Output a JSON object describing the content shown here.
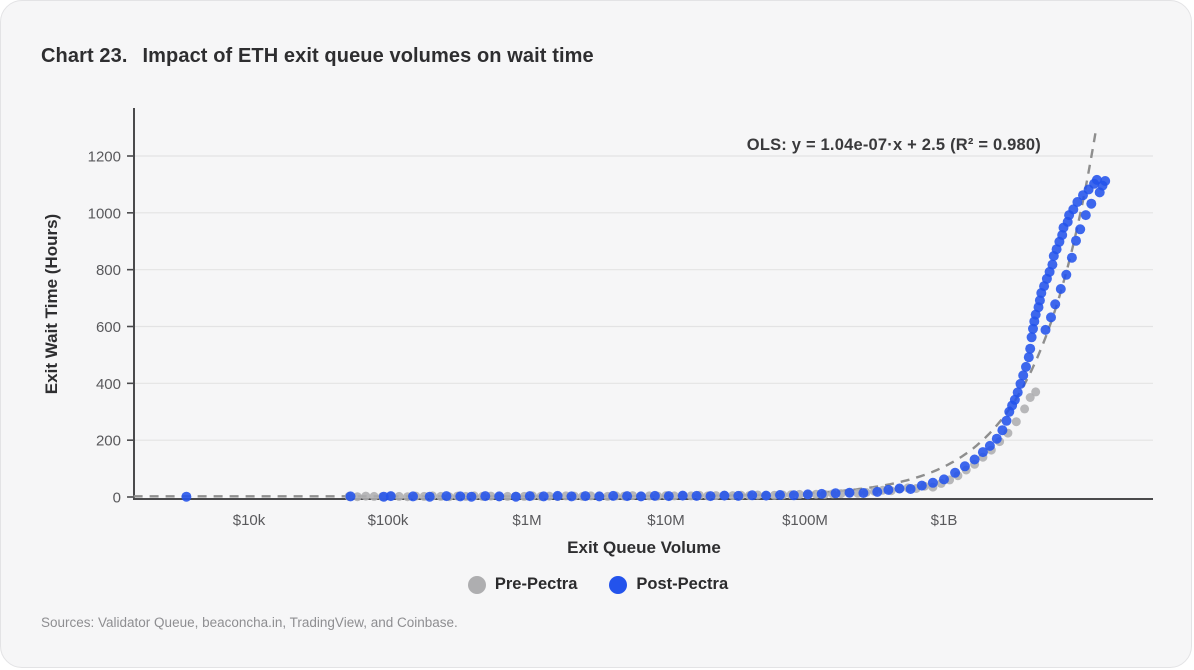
{
  "card": {
    "title_prefix": "Chart 23.",
    "title_text": "Impact of ETH exit queue volumes on wait time",
    "sources": "Sources: Validator Queue, beaconcha.in, TradingView, and Coinbase."
  },
  "colors": {
    "card_bg": "#f6f6f7",
    "pre_pectra": "#aeaeb0",
    "post_pectra": "#2353ec",
    "ols_line": "#8e8e8e",
    "gridline": "#e3e3e4",
    "axis": "#4a4a4c",
    "tick_text": "#59595c"
  },
  "chart_data": {
    "type": "scatter",
    "title": "Impact of ETH exit queue volumes on wait time",
    "xlabel": "Exit Queue Volume",
    "ylabel": "Exit Wait Time (Hours)",
    "annotation": "OLS: y = 1.04e-07·x + 2.5  (R² = 0.980)",
    "x_scale": "log10_dollars",
    "xlim_log10": [
      3.17,
      10.5
    ],
    "ylim": [
      0,
      1300
    ],
    "grid": "horizontal",
    "legend_position": "bottom-center",
    "x_ticks": [
      {
        "log10": 4,
        "label": "$10k"
      },
      {
        "log10": 5,
        "label": "$100k"
      },
      {
        "log10": 6,
        "label": "$1M"
      },
      {
        "log10": 7,
        "label": "$10M"
      },
      {
        "log10": 8,
        "label": "$100M"
      },
      {
        "log10": 9,
        "label": "$1B"
      }
    ],
    "y_ticks": [
      0,
      200,
      400,
      600,
      800,
      1000,
      1200
    ],
    "ols_fit": {
      "slope": 1.04e-07,
      "intercept": 2.5,
      "r_squared": 0.98,
      "x_units": "dollars",
      "y_units": "hours"
    },
    "series": [
      {
        "name": "Pre-Pectra",
        "color": "#aeaeb0",
        "points_log10x_hours": [
          [
            4.72,
            2
          ],
          [
            4.78,
            1
          ],
          [
            4.84,
            3
          ],
          [
            4.9,
            2
          ],
          [
            4.96,
            1
          ],
          [
            5.02,
            3
          ],
          [
            5.08,
            2
          ],
          [
            5.14,
            1
          ],
          [
            5.2,
            3
          ],
          [
            5.26,
            2
          ],
          [
            5.32,
            4
          ],
          [
            5.38,
            2
          ],
          [
            5.44,
            1
          ],
          [
            5.5,
            3
          ],
          [
            5.56,
            2
          ],
          [
            5.62,
            4
          ],
          [
            5.68,
            2
          ],
          [
            5.74,
            3
          ],
          [
            5.8,
            1
          ],
          [
            5.86,
            2
          ],
          [
            5.92,
            3
          ],
          [
            5.98,
            2
          ],
          [
            6.04,
            4
          ],
          [
            6.1,
            2
          ],
          [
            6.16,
            3
          ],
          [
            6.22,
            2
          ],
          [
            6.28,
            4
          ],
          [
            6.34,
            3
          ],
          [
            6.4,
            2
          ],
          [
            6.46,
            4
          ],
          [
            6.52,
            3
          ],
          [
            6.58,
            2
          ],
          [
            6.64,
            4
          ],
          [
            6.7,
            3
          ],
          [
            6.76,
            5
          ],
          [
            6.82,
            3
          ],
          [
            6.88,
            4
          ],
          [
            6.94,
            3
          ],
          [
            7.0,
            5
          ],
          [
            7.06,
            4
          ],
          [
            7.12,
            5
          ],
          [
            7.18,
            4
          ],
          [
            7.24,
            6
          ],
          [
            7.3,
            4
          ],
          [
            7.36,
            5
          ],
          [
            7.42,
            6
          ],
          [
            7.48,
            5
          ],
          [
            7.54,
            6
          ],
          [
            7.6,
            5
          ],
          [
            7.66,
            7
          ],
          [
            7.72,
            5
          ],
          [
            7.78,
            6
          ],
          [
            7.84,
            7
          ],
          [
            7.9,
            8
          ],
          [
            7.96,
            9
          ],
          [
            8.02,
            8
          ],
          [
            8.08,
            10
          ],
          [
            8.14,
            9
          ],
          [
            8.2,
            11
          ],
          [
            8.26,
            12
          ],
          [
            8.32,
            14
          ],
          [
            8.38,
            13
          ],
          [
            8.44,
            16
          ],
          [
            8.5,
            20
          ],
          [
            8.56,
            24
          ],
          [
            8.62,
            22
          ],
          [
            8.68,
            28
          ],
          [
            8.74,
            32
          ],
          [
            8.8,
            30
          ],
          [
            8.86,
            38
          ],
          [
            8.92,
            35
          ],
          [
            8.98,
            48
          ],
          [
            9.04,
            60
          ],
          [
            9.1,
            75
          ],
          [
            9.16,
            95
          ],
          [
            9.22,
            115
          ],
          [
            9.28,
            140
          ],
          [
            9.34,
            165
          ],
          [
            9.4,
            195
          ],
          [
            9.46,
            225
          ],
          [
            9.52,
            265
          ],
          [
            9.58,
            310
          ],
          [
            9.62,
            350
          ],
          [
            9.66,
            370
          ]
        ]
      },
      {
        "name": "Post-Pectra",
        "color": "#2353ec",
        "points_log10x_hours": [
          [
            3.55,
            1
          ],
          [
            4.73,
            2
          ],
          [
            4.97,
            1
          ],
          [
            5.02,
            3
          ],
          [
            5.18,
            2
          ],
          [
            5.3,
            1
          ],
          [
            5.42,
            3
          ],
          [
            5.52,
            2
          ],
          [
            5.6,
            1
          ],
          [
            5.7,
            3
          ],
          [
            5.8,
            2
          ],
          [
            5.92,
            1
          ],
          [
            6.02,
            3
          ],
          [
            6.12,
            2
          ],
          [
            6.22,
            4
          ],
          [
            6.32,
            2
          ],
          [
            6.42,
            3
          ],
          [
            6.52,
            2
          ],
          [
            6.62,
            4
          ],
          [
            6.72,
            3
          ],
          [
            6.82,
            2
          ],
          [
            6.92,
            4
          ],
          [
            7.02,
            3
          ],
          [
            7.12,
            5
          ],
          [
            7.22,
            4
          ],
          [
            7.32,
            3
          ],
          [
            7.42,
            5
          ],
          [
            7.52,
            4
          ],
          [
            7.62,
            6
          ],
          [
            7.72,
            5
          ],
          [
            7.82,
            7
          ],
          [
            7.92,
            6
          ],
          [
            8.02,
            9
          ],
          [
            8.12,
            11
          ],
          [
            8.22,
            13
          ],
          [
            8.32,
            15
          ],
          [
            8.42,
            14
          ],
          [
            8.52,
            18
          ],
          [
            8.6,
            25
          ],
          [
            8.68,
            30
          ],
          [
            8.76,
            28
          ],
          [
            8.84,
            40
          ],
          [
            8.92,
            50
          ],
          [
            9.0,
            62
          ],
          [
            9.08,
            85
          ],
          [
            9.15,
            108
          ],
          [
            9.22,
            132
          ],
          [
            9.28,
            158
          ],
          [
            9.33,
            180
          ],
          [
            9.38,
            205
          ],
          [
            9.42,
            235
          ],
          [
            9.45,
            268
          ],
          [
            9.47,
            300
          ],
          [
            9.49,
            322
          ],
          [
            9.51,
            342
          ],
          [
            9.53,
            368
          ],
          [
            9.55,
            398
          ],
          [
            9.57,
            428
          ],
          [
            9.59,
            458
          ],
          [
            9.61,
            492
          ],
          [
            9.62,
            522
          ],
          [
            9.63,
            562
          ],
          [
            9.64,
            592
          ],
          [
            9.65,
            618
          ],
          [
            9.66,
            642
          ],
          [
            9.68,
            668
          ],
          [
            9.69,
            692
          ],
          [
            9.7,
            718
          ],
          [
            9.72,
            742
          ],
          [
            9.73,
            588
          ],
          [
            9.74,
            768
          ],
          [
            9.76,
            792
          ],
          [
            9.77,
            632
          ],
          [
            9.78,
            818
          ],
          [
            9.79,
            848
          ],
          [
            9.8,
            678
          ],
          [
            9.81,
            872
          ],
          [
            9.83,
            898
          ],
          [
            9.84,
            732
          ],
          [
            9.85,
            922
          ],
          [
            9.86,
            948
          ],
          [
            9.88,
            782
          ],
          [
            9.89,
            968
          ],
          [
            9.9,
            992
          ],
          [
            9.92,
            842
          ],
          [
            9.93,
            1012
          ],
          [
            9.95,
            902
          ],
          [
            9.96,
            1038
          ],
          [
            9.98,
            942
          ],
          [
            10.0,
            1062
          ],
          [
            10.02,
            992
          ],
          [
            10.04,
            1082
          ],
          [
            10.06,
            1032
          ],
          [
            10.08,
            1102
          ],
          [
            10.1,
            1116
          ],
          [
            10.12,
            1072
          ],
          [
            10.14,
            1096
          ],
          [
            10.16,
            1112
          ]
        ]
      }
    ]
  }
}
